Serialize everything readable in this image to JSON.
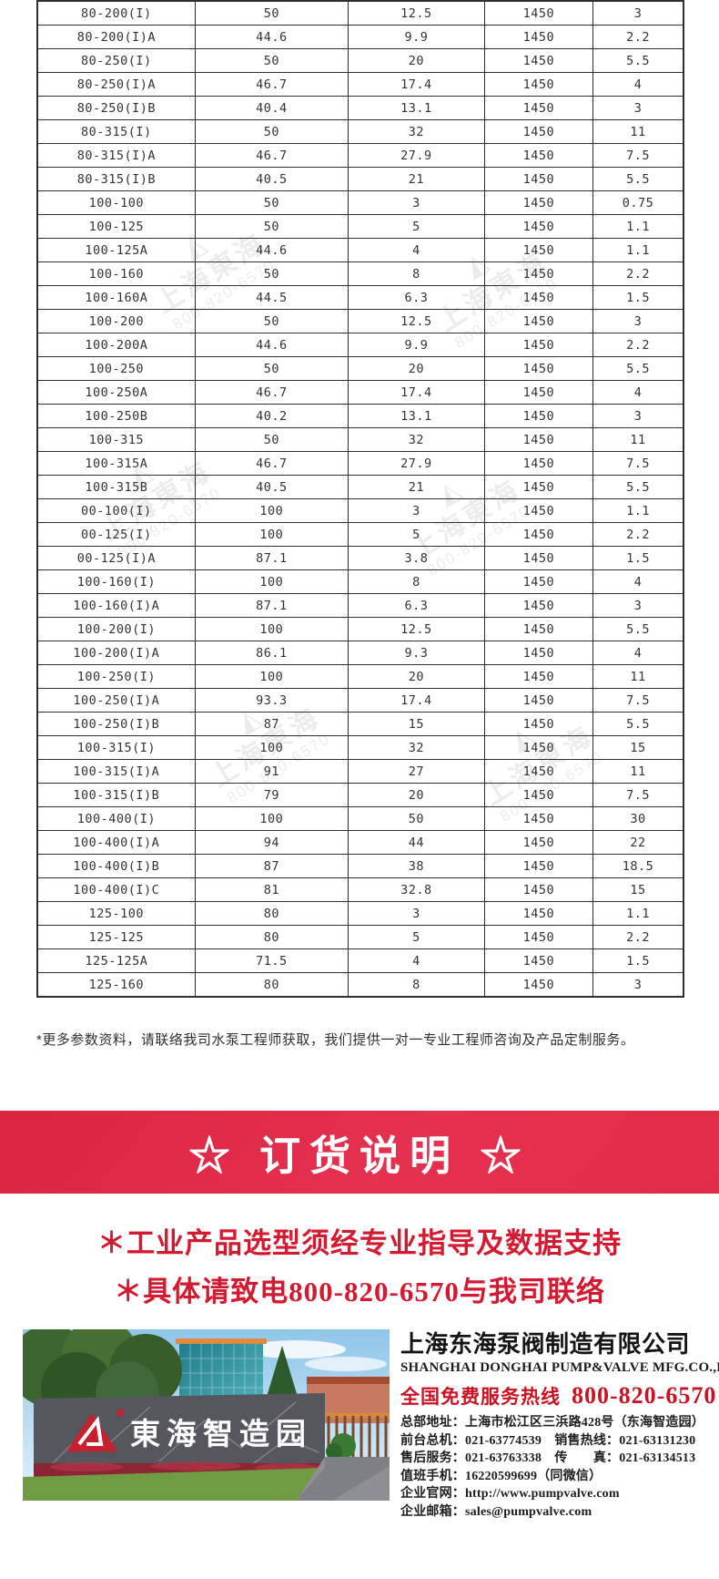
{
  "table": {
    "rows": [
      [
        "80-200(I)",
        "50",
        "12.5",
        "1450",
        "3"
      ],
      [
        "80-200(I)A",
        "44.6",
        "9.9",
        "1450",
        "2.2"
      ],
      [
        "80-250(I)",
        "50",
        "20",
        "1450",
        "5.5"
      ],
      [
        "80-250(I)A",
        "46.7",
        "17.4",
        "1450",
        "4"
      ],
      [
        "80-250(I)B",
        "40.4",
        "13.1",
        "1450",
        "3"
      ],
      [
        "80-315(I)",
        "50",
        "32",
        "1450",
        "11"
      ],
      [
        "80-315(I)A",
        "46.7",
        "27.9",
        "1450",
        "7.5"
      ],
      [
        "80-315(I)B",
        "40.5",
        "21",
        "1450",
        "5.5"
      ],
      [
        "100-100",
        "50",
        "3",
        "1450",
        "0.75"
      ],
      [
        "100-125",
        "50",
        "5",
        "1450",
        "1.1"
      ],
      [
        "100-125A",
        "44.6",
        "4",
        "1450",
        "1.1"
      ],
      [
        "100-160",
        "50",
        "8",
        "1450",
        "2.2"
      ],
      [
        "100-160A",
        "44.5",
        "6.3",
        "1450",
        "1.5"
      ],
      [
        "100-200",
        "50",
        "12.5",
        "1450",
        "3"
      ],
      [
        "100-200A",
        "44.6",
        "9.9",
        "1450",
        "2.2"
      ],
      [
        "100-250",
        "50",
        "20",
        "1450",
        "5.5"
      ],
      [
        "100-250A",
        "46.7",
        "17.4",
        "1450",
        "4"
      ],
      [
        "100-250B",
        "40.2",
        "13.1",
        "1450",
        "3"
      ],
      [
        "100-315",
        "50",
        "32",
        "1450",
        "11"
      ],
      [
        "100-315A",
        "46.7",
        "27.9",
        "1450",
        "7.5"
      ],
      [
        "100-315B",
        "40.5",
        "21",
        "1450",
        "5.5"
      ],
      [
        "00-100(I)",
        "100",
        "3",
        "1450",
        "1.1"
      ],
      [
        "00-125(I)",
        "100",
        "5",
        "1450",
        "2.2"
      ],
      [
        "00-125(I)A",
        "87.1",
        "3.8",
        "1450",
        "1.5"
      ],
      [
        "100-160(I)",
        "100",
        "8",
        "1450",
        "4"
      ],
      [
        "100-160(I)A",
        "87.1",
        "6.3",
        "1450",
        "3"
      ],
      [
        "100-200(I)",
        "100",
        "12.5",
        "1450",
        "5.5"
      ],
      [
        "100-200(I)A",
        "86.1",
        "9.3",
        "1450",
        "4"
      ],
      [
        "100-250(I)",
        "100",
        "20",
        "1450",
        "11"
      ],
      [
        "100-250(I)A",
        "93.3",
        "17.4",
        "1450",
        "7.5"
      ],
      [
        "100-250(I)B",
        "87",
        "15",
        "1450",
        "5.5"
      ],
      [
        "100-315(I)",
        "100",
        "32",
        "1450",
        "15"
      ],
      [
        "100-315(I)A",
        "91",
        "27",
        "1450",
        "11"
      ],
      [
        "100-315(I)B",
        "79",
        "20",
        "1450",
        "7.5"
      ],
      [
        "100-400(I)",
        "100",
        "50",
        "1450",
        "30"
      ],
      [
        "100-400(I)A",
        "94",
        "44",
        "1450",
        "22"
      ],
      [
        "100-400(I)B",
        "87",
        "38",
        "1450",
        "18.5"
      ],
      [
        "100-400(I)C",
        "81",
        "32.8",
        "1450",
        "15"
      ],
      [
        "125-100",
        "80",
        "3",
        "1450",
        "1.1"
      ],
      [
        "125-125",
        "80",
        "5",
        "1450",
        "2.2"
      ],
      [
        "125-125A",
        "71.5",
        "4",
        "1450",
        "1.5"
      ],
      [
        "125-160",
        "80",
        "8",
        "1450",
        "3"
      ]
    ]
  },
  "note": "*更多参数资料，请联络我司水泵工程师获取，我们提供一对一专业工程师咨询及产品定制服务。",
  "banner": {
    "title": "☆ 订货说明 ☆"
  },
  "warnings": [
    "＊工业产品选型须经专业指导及数据支持",
    "＊具体请致电800-820-6570与我司联络"
  ],
  "company": {
    "name": "上海东海泵阀制造有限公司",
    "name_en": "SHANGHAI DONGHAI PUMP&VALVE MFG.CO.,LTD.",
    "hotline_label": "全国免费服务热线",
    "hotline_number": "800-820-6570",
    "details": [
      "总部地址：上海市松江区三浜路428号（东海智造园）",
      "前台总机：021-63774539　销售热线：021-63131230",
      "售后服务：021-63763338　传　　真：021-63134513",
      "值班手机：16220599699（同微信）",
      "企业官网：http://www.pumpvalve.com",
      "企业邮箱：sales@pumpvalve.com"
    ]
  },
  "photo": {
    "sign_text": "東海智造园",
    "logo": "donghai-triangle-logo"
  },
  "watermark": {
    "line1": "上海東海",
    "line2": "800-820-6570",
    "logo_glyph": "◭"
  },
  "colors": {
    "banner_red": "#e22c47",
    "warning_red": "#d41a31",
    "hotline_red": "#cc1122",
    "table_border": "#2e2e2e",
    "text_dark": "#333333"
  }
}
